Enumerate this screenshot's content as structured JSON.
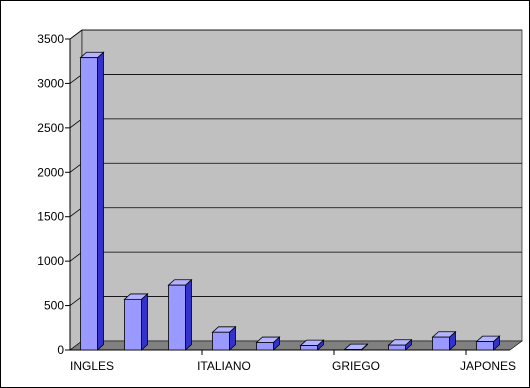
{
  "chart_data": {
    "type": "bar",
    "style": "3d-column",
    "categories": [
      "INGLES",
      "",
      "",
      "ITALIANO",
      "",
      "",
      "GRIEGO",
      "",
      "",
      "JAPONES"
    ],
    "x_tick_labels": [
      {
        "index": 0,
        "text": "INGLES"
      },
      {
        "index": 3,
        "text": "ITALIANO"
      },
      {
        "index": 6,
        "text": "GRIEGO"
      },
      {
        "index": 9,
        "text": "JAPONES"
      }
    ],
    "series": [
      {
        "values": [
          3290,
          570,
          730,
          200,
          85,
          50,
          5,
          55,
          145,
          95
        ]
      }
    ],
    "y_ticks": [
      0,
      500,
      1000,
      1500,
      2000,
      2500,
      3000,
      3500
    ],
    "ylim": [
      0,
      3500
    ],
    "grid": true,
    "title": "",
    "xlabel": "",
    "ylabel": "",
    "colors": {
      "bar_front": "#9999ff",
      "bar_side": "#3333cc",
      "bar_top": "#b3b3ff",
      "wall": "#c0c0c0",
      "floor": "#808080",
      "grid": "#000000"
    }
  }
}
